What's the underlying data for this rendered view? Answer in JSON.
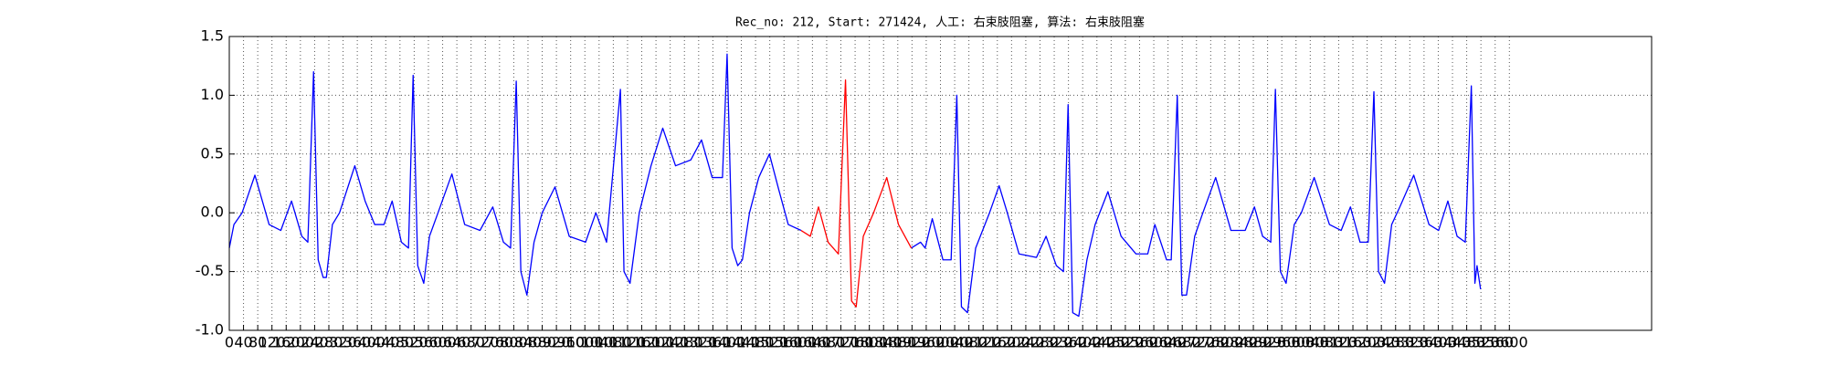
{
  "chart_data": {
    "type": "line",
    "title": "Rec_no: 212, Start: 271424, 人工: 右束肢阻塞, 算法: 右束肢阻塞",
    "x": [
      0,
      13,
      36,
      72,
      112,
      145,
      175,
      204,
      221,
      237,
      250,
      264,
      273,
      290,
      310,
      353,
      382,
      409,
      435,
      458,
      484,
      504,
      517,
      530,
      547,
      563,
      587,
      626,
      662,
      705,
      741,
      771,
      791,
      807,
      820,
      837,
      857,
      880,
      916,
      956,
      1002,
      1031,
      1061,
      1100,
      1110,
      1127,
      1153,
      1186,
      1219,
      1255,
      1298,
      1328,
      1358,
      1387,
      1400,
      1414,
      1430,
      1443,
      1463,
      1489,
      1519,
      1545,
      1572,
      1608,
      1634,
      1657,
      1684,
      1713,
      1733,
      1750,
      1763,
      1783,
      1812,
      1849,
      1882,
      1918,
      1944,
      1957,
      1977,
      2007,
      2030,
      2046,
      2059,
      2076,
      2099,
      2138,
      2165,
      2188,
      2221,
      2270,
      2297,
      2326,
      2346,
      2359,
      2372,
      2389,
      2412,
      2435,
      2471,
      2508,
      2550,
      2583,
      2603,
      2636,
      2649,
      2666,
      2679,
      2692,
      2715,
      2738,
      2774,
      2817,
      2857,
      2883,
      2906,
      2929,
      2942,
      2956,
      2972,
      2995,
      3015,
      3051,
      3094,
      3127,
      3153,
      3180,
      3203,
      3219,
      3232,
      3249,
      3269,
      3292,
      3331,
      3374,
      3401,
      3427,
      3453,
      3476,
      3493,
      3503,
      3509,
      3519
    ],
    "series": [
      {
        "color": "#0000ff",
        "values": [
          -0.3,
          -0.1,
          0,
          0.32,
          -0.1,
          -0.15,
          0.1,
          -0.2,
          -0.25,
          1.2,
          -0.4,
          -0.55,
          -0.55,
          -0.1,
          0,
          0.4,
          0.1,
          -0.1,
          -0.1,
          0.1,
          -0.25,
          -0.3,
          1.17,
          -0.45,
          -0.6,
          -0.2,
          0,
          0.33,
          -0.1,
          -0.15,
          0.05,
          -0.25,
          -0.3,
          1.12,
          -0.5,
          -0.7,
          -0.25,
          0,
          0.22,
          -0.2,
          -0.25,
          0,
          -0.25,
          1.05,
          -0.5,
          -0.6,
          0,
          0.4,
          0.72,
          0.4,
          0.45,
          0.62,
          0.3,
          0.3,
          1.35,
          -0.3,
          -0.45,
          -0.4,
          0,
          0.3,
          0.5,
          0.2,
          -0.1,
          -0.15,
          null,
          null,
          null,
          null,
          null,
          null,
          null,
          null,
          null,
          null,
          null,
          -0.3,
          -0.25,
          -0.3,
          -0.05,
          -0.4,
          -0.4,
          1.0,
          -0.8,
          -0.85,
          -0.3,
          0,
          0.23,
          0,
          -0.35,
          -0.38,
          -0.2,
          -0.45,
          -0.5,
          0.92,
          -0.85,
          -0.88,
          -0.4,
          -0.1,
          0.18,
          -0.2,
          -0.35,
          -0.35,
          -0.1,
          -0.4,
          -0.4,
          1.0,
          -0.7,
          -0.7,
          -0.2,
          0,
          0.3,
          -0.15,
          -0.15,
          0.05,
          -0.2,
          -0.25,
          1.05,
          -0.5,
          -0.6,
          -0.1,
          0,
          0.3,
          -0.1,
          -0.15,
          0.05,
          -0.25,
          -0.25,
          1.03,
          -0.5,
          -0.6,
          -0.1,
          0.05,
          0.32,
          -0.1,
          -0.15,
          0.1,
          -0.2,
          -0.25,
          1.08,
          -0.6,
          -0.45,
          -0.65
        ]
      },
      {
        "color": "#ff0000",
        "values": [
          null,
          null,
          null,
          null,
          null,
          null,
          null,
          null,
          null,
          null,
          null,
          null,
          null,
          null,
          null,
          null,
          null,
          null,
          null,
          null,
          null,
          null,
          null,
          null,
          null,
          null,
          null,
          null,
          null,
          null,
          null,
          null,
          null,
          null,
          null,
          null,
          null,
          null,
          null,
          null,
          null,
          null,
          null,
          null,
          null,
          null,
          null,
          null,
          null,
          null,
          null,
          null,
          null,
          null,
          null,
          null,
          null,
          null,
          null,
          null,
          null,
          null,
          null,
          -0.15,
          -0.2,
          0.05,
          -0.25,
          -0.35,
          1.13,
          -0.75,
          -0.8,
          -0.2,
          0,
          0.3,
          -0.1,
          -0.3,
          null,
          null,
          null,
          null,
          null,
          null,
          null,
          null,
          null,
          null,
          null,
          null,
          null,
          null,
          null,
          null,
          null,
          null,
          null,
          null,
          null,
          null,
          null,
          null,
          null,
          null,
          null,
          null,
          null,
          null,
          null,
          null,
          null,
          null,
          null,
          null,
          null,
          null,
          null,
          null,
          null,
          null,
          null,
          null,
          null,
          null,
          null,
          null,
          null,
          null,
          null,
          null,
          null,
          null,
          null,
          null,
          null,
          null,
          null,
          null,
          null,
          null,
          null,
          null,
          null,
          null
        ]
      }
    ],
    "xlim": [
      0,
      4000
    ],
    "xticks": [
      0,
      40,
      80,
      120,
      160,
      200,
      240,
      280,
      320,
      360,
      400,
      440,
      480,
      520,
      560,
      600,
      640,
      680,
      720,
      760,
      800,
      840,
      880,
      920,
      960,
      1000,
      1040,
      1080,
      1120,
      1160,
      1200,
      1240,
      1280,
      1320,
      1360,
      1400,
      1440,
      1480,
      1520,
      1560,
      1600,
      1640,
      1680,
      1720,
      1760,
      1800,
      1840,
      1880,
      1920,
      1960,
      2000,
      2040,
      2080,
      2120,
      2160,
      2200,
      2240,
      2280,
      2320,
      2360,
      2400,
      2440,
      2480,
      2520,
      2560,
      2600,
      2640,
      2680,
      2720,
      2760,
      2800,
      2840,
      2880,
      2920,
      2960,
      3000,
      3040,
      3080,
      3120,
      3160,
      3200,
      3240,
      3280,
      3320,
      3360,
      3400,
      3440,
      3480,
      3520,
      3560,
      3600
    ],
    "ylim": [
      -1.0,
      1.5
    ],
    "yticks": [
      {
        "value": -1.0,
        "label": "-1.0"
      },
      -0.5,
      {
        "value": 0,
        "label": "0.0"
      },
      0.5,
      {
        "value": 1.0,
        "label": "1.0"
      },
      1.5
    ],
    "grid": true
  }
}
